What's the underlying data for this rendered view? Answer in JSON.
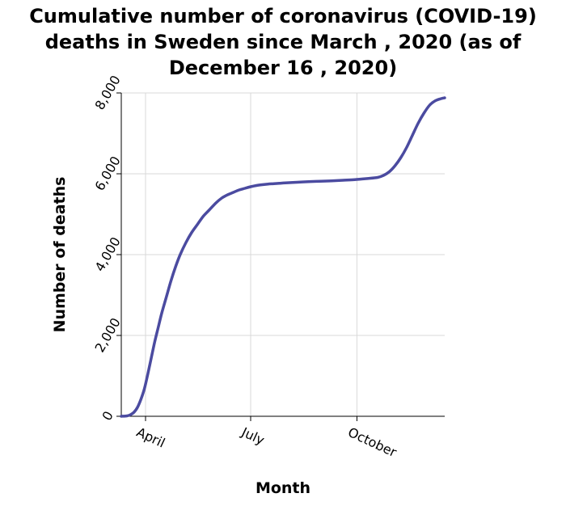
{
  "chart_data": {
    "type": "line",
    "title": "Cumulative number of coronavirus (COVID-19) deaths in Sweden since March , 2020 (as of December 16 , 2020)",
    "title_lines": [
      "Cumulative number of coronavirus (COVID-19)",
      "deaths in Sweden since March , 2020 (as of",
      "December 16 , 2020)"
    ],
    "xlabel": "Month",
    "ylabel": "Number of deaths",
    "ylim": [
      0,
      8000
    ],
    "y_ticks": [
      0,
      2000,
      4000,
      6000,
      8000
    ],
    "y_tick_labels": [
      "0",
      "2,000",
      "4,000",
      "6,000",
      "8,000"
    ],
    "x_ticks": [
      "2020-04-01",
      "2020-07-01",
      "2020-10-01"
    ],
    "x_tick_labels": [
      "April",
      "July",
      "October"
    ],
    "xlim": [
      "2020-03-11",
      "2020-12-16"
    ],
    "grid": true,
    "line_color": "#4b4ba0",
    "series": [
      {
        "x": [
          "2020-03-11",
          "2020-03-16",
          "2020-03-19",
          "2020-03-22",
          "2020-03-25",
          "2020-03-28",
          "2020-03-31",
          "2020-04-03",
          "2020-04-06",
          "2020-04-09",
          "2020-04-12",
          "2020-04-15",
          "2020-04-19",
          "2020-04-23",
          "2020-04-27",
          "2020-05-01",
          "2020-05-06",
          "2020-05-11",
          "2020-05-16",
          "2020-05-21",
          "2020-05-26",
          "2020-06-01",
          "2020-06-06",
          "2020-06-11",
          "2020-06-16",
          "2020-06-21",
          "2020-06-26",
          "2020-07-01",
          "2020-07-06",
          "2020-07-11",
          "2020-07-16",
          "2020-07-21",
          "2020-07-26",
          "2020-07-31",
          "2020-08-10",
          "2020-08-20",
          "2020-08-30",
          "2020-09-09",
          "2020-09-19",
          "2020-09-29",
          "2020-10-09",
          "2020-10-19",
          "2020-10-24",
          "2020-10-29",
          "2020-11-03",
          "2020-11-08",
          "2020-11-13",
          "2020-11-18",
          "2020-11-23",
          "2020-11-28",
          "2020-12-03",
          "2020-12-08",
          "2020-12-13",
          "2020-12-16"
        ],
        "y": [
          0,
          10,
          40,
          100,
          220,
          420,
          680,
          1050,
          1450,
          1850,
          2200,
          2550,
          2950,
          3350,
          3700,
          4000,
          4300,
          4550,
          4750,
          4950,
          5100,
          5280,
          5400,
          5480,
          5540,
          5600,
          5640,
          5680,
          5710,
          5730,
          5745,
          5755,
          5765,
          5775,
          5790,
          5805,
          5815,
          5825,
          5840,
          5855,
          5880,
          5910,
          5960,
          6050,
          6200,
          6400,
          6650,
          6950,
          7250,
          7500,
          7700,
          7810,
          7860,
          7880
        ]
      }
    ]
  }
}
